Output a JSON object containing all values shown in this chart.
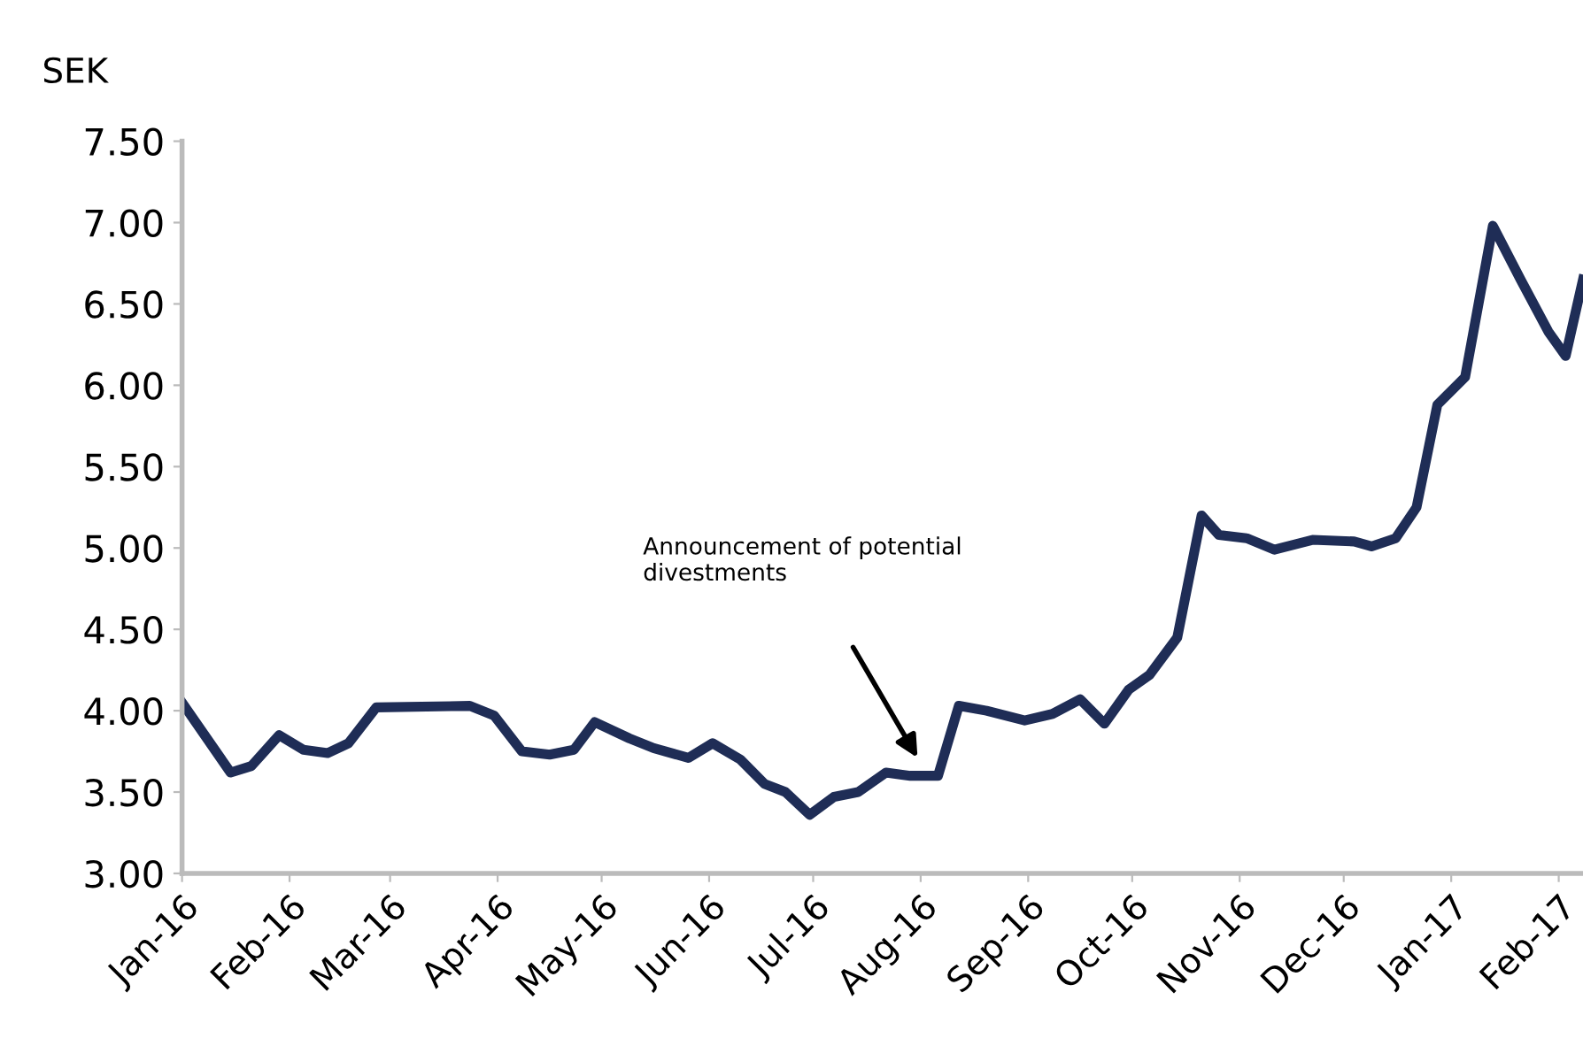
{
  "chart_data": {
    "type": "line",
    "ylabel": "SEK",
    "x": [
      "2016-01-01",
      "2016-01-15",
      "2016-01-21",
      "2016-01-29",
      "2016-02-05",
      "2016-02-12",
      "2016-02-18",
      "2016-02-26",
      "2016-03-24",
      "2016-03-31",
      "2016-04-08",
      "2016-04-16",
      "2016-04-23",
      "2016-04-29",
      "2016-05-09",
      "2016-05-16",
      "2016-05-26",
      "2016-06-02",
      "2016-06-10",
      "2016-06-17",
      "2016-06-23",
      "2016-06-30",
      "2016-07-07",
      "2016-07-14",
      "2016-07-22",
      "2016-07-29",
      "2016-08-06",
      "2016-08-12",
      "2016-08-20",
      "2016-08-31",
      "2016-09-08",
      "2016-09-16",
      "2016-09-23",
      "2016-09-30",
      "2016-10-06",
      "2016-10-14",
      "2016-10-21",
      "2016-10-26",
      "2016-11-03",
      "2016-11-11",
      "2016-11-22",
      "2016-12-04",
      "2016-12-09",
      "2016-12-16",
      "2016-12-22",
      "2016-12-28",
      "2017-01-05",
      "2017-01-13",
      "2017-01-21",
      "2017-01-29",
      "2017-02-03",
      "2017-02-08"
    ],
    "series": [
      {
        "color": "#1f2d56",
        "values": [
          4.05,
          3.62,
          3.66,
          3.85,
          3.76,
          3.74,
          3.8,
          4.02,
          4.03,
          3.97,
          3.75,
          3.73,
          3.76,
          3.93,
          3.83,
          3.77,
          3.71,
          3.8,
          3.7,
          3.55,
          3.5,
          3.36,
          3.47,
          3.5,
          3.62,
          3.6,
          3.6,
          4.03,
          4.0,
          3.94,
          3.98,
          4.07,
          3.92,
          4.13,
          4.22,
          4.45,
          5.2,
          5.08,
          5.06,
          4.99,
          5.05,
          5.04,
          5.01,
          5.06,
          5.25,
          5.88,
          6.05,
          6.98,
          6.65,
          6.33,
          6.18,
          6.65
        ]
      }
    ],
    "xlim": [
      "2016-01-01",
      "2017-02-08"
    ],
    "xticks": [
      {
        "value": "2016-01-01",
        "label": "Jan-16"
      },
      {
        "value": "2016-02-01",
        "label": "Feb-16"
      },
      {
        "value": "2016-03-01",
        "label": "Mar-16"
      },
      {
        "value": "2016-04-01",
        "label": "Apr-16"
      },
      {
        "value": "2016-05-01",
        "label": "May-16"
      },
      {
        "value": "2016-06-01",
        "label": "Jun-16"
      },
      {
        "value": "2016-07-01",
        "label": "Jul-16"
      },
      {
        "value": "2016-08-01",
        "label": "Aug-16"
      },
      {
        "value": "2016-09-01",
        "label": "Sep-16"
      },
      {
        "value": "2016-10-01",
        "label": "Oct-16"
      },
      {
        "value": "2016-11-01",
        "label": "Nov-16"
      },
      {
        "value": "2016-12-01",
        "label": "Dec-16"
      },
      {
        "value": "2017-01-01",
        "label": "Jan-17"
      },
      {
        "value": "2017-02-01",
        "label": "Feb-17"
      }
    ],
    "ylim": [
      3.0,
      7.5
    ],
    "yticks": [
      {
        "value": 3.0,
        "label": "3.00"
      },
      {
        "value": 3.5,
        "label": "3.50"
      },
      {
        "value": 4.0,
        "label": "4.00"
      },
      {
        "value": 4.5,
        "label": "4.50"
      },
      {
        "value": 5.0,
        "label": "5.00"
      },
      {
        "value": 5.5,
        "label": "5.50"
      },
      {
        "value": 6.0,
        "label": "6.00"
      },
      {
        "value": 6.5,
        "label": "6.50"
      },
      {
        "value": 7.0,
        "label": "7.00"
      },
      {
        "value": 7.5,
        "label": "7.50"
      }
    ],
    "annotations": [
      "Announcement of potential\ndivestments"
    ],
    "grid": false,
    "marker": "none",
    "line_style": "solid"
  }
}
